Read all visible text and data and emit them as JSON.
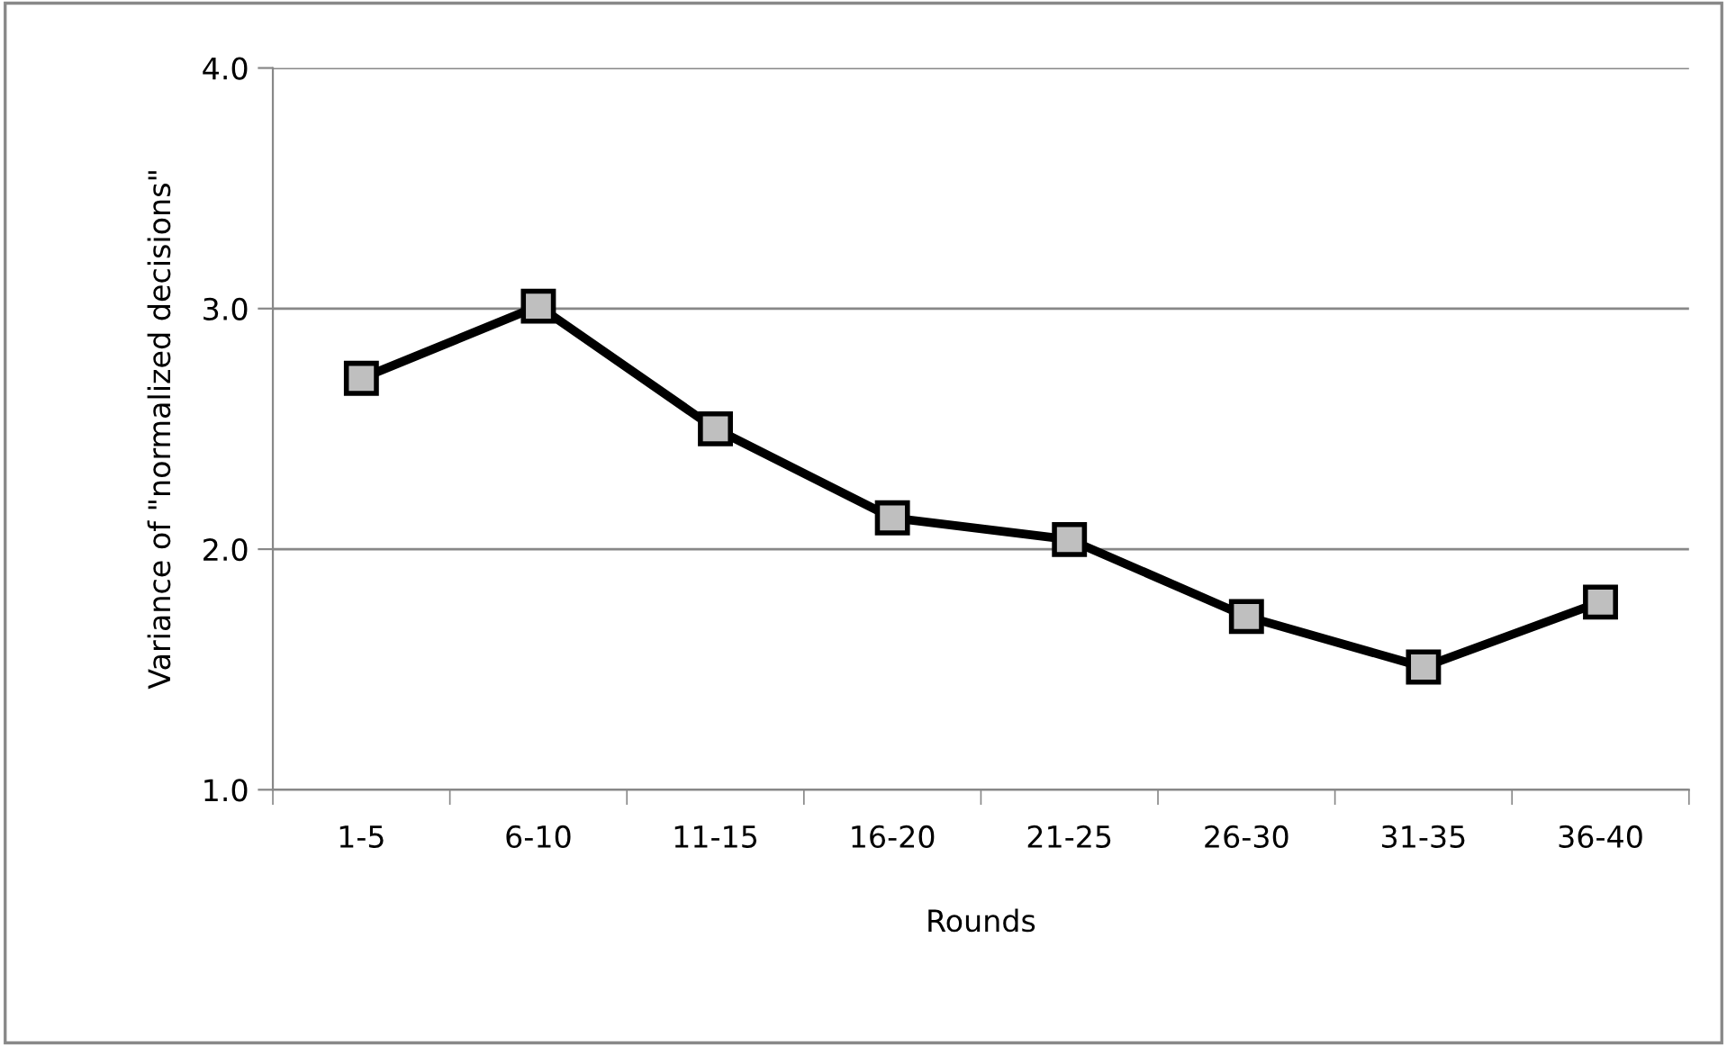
{
  "chart_data": {
    "type": "line",
    "xlabel": "Rounds",
    "ylabel": "Variance of \"normalized decisions\"",
    "categories": [
      "1-5",
      "6-10",
      "11-15",
      "16-20",
      "21-25",
      "26-30",
      "31-35",
      "36-40"
    ],
    "series": [
      {
        "color": "#000000",
        "values": [
          2.71,
          3.01,
          2.5,
          2.13,
          2.04,
          1.72,
          1.51,
          1.78
        ]
      }
    ],
    "ylim": [
      1.0,
      4.0
    ],
    "yticks": [
      {
        "value": 1.0,
        "label": "1.0"
      },
      {
        "value": 2.0,
        "label": "2.0"
      },
      {
        "value": 3.0,
        "label": "3.0"
      },
      {
        "value": 4.0,
        "label": "4.0"
      }
    ],
    "grid": "y",
    "marker": "square",
    "line_style": "solid",
    "legend": false
  }
}
